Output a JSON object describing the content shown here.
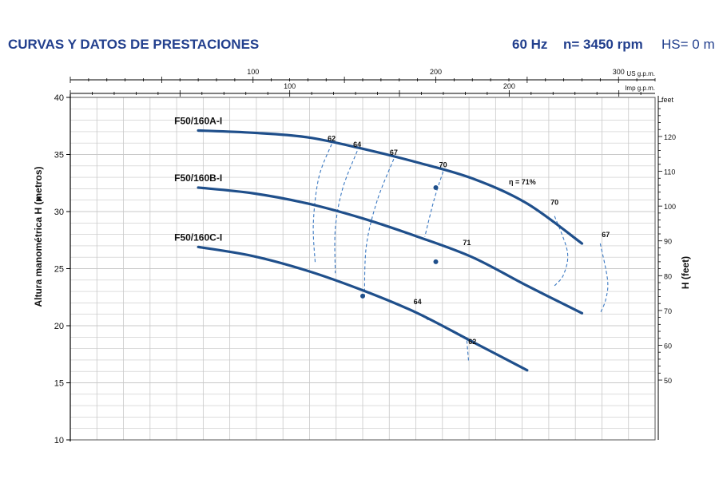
{
  "header": {
    "title": "CURVAS Y DATOS DE PRESTACIONES",
    "frequency": "60 Hz",
    "speed": "n= 3450 rpm",
    "suction": "HS= 0 m"
  },
  "colors": {
    "curve": "#1f4f8b",
    "header_text": "#23408e",
    "grid": "#c8c8c8",
    "axis": "#000000"
  },
  "chart_data": {
    "type": "line",
    "title": "",
    "ylabel": "Altura manométrica H (metros)",
    "ylabel_right": "H (feet)",
    "right_unit": "feet",
    "ylim": [
      10,
      40
    ],
    "yticks": [
      10,
      15,
      20,
      25,
      30,
      35,
      40
    ],
    "feet_ticks": [
      50,
      60,
      70,
      80,
      90,
      100,
      110,
      120
    ],
    "x_us_gpm": {
      "label": "US g.p.m.",
      "range": [
        0,
        320
      ],
      "ticks": [
        100,
        200,
        300
      ]
    },
    "x_imp_gpm": {
      "label": "Imp g.p.m.",
      "range": [
        0,
        266.5
      ],
      "ticks": [
        100,
        200
      ]
    },
    "grid": true,
    "series": [
      {
        "name": "F50/160A-I",
        "points": [
          [
            70,
            37.1
          ],
          [
            100,
            36.9
          ],
          [
            130,
            36.5
          ],
          [
            160,
            35.5
          ],
          [
            190,
            34.3
          ],
          [
            220,
            32.9
          ],
          [
            250,
            30.7
          ],
          [
            280,
            27.2
          ]
        ]
      },
      {
        "name": "F50/160B-I",
        "points": [
          [
            70,
            32.1
          ],
          [
            100,
            31.6
          ],
          [
            130,
            30.7
          ],
          [
            160,
            29.4
          ],
          [
            190,
            27.8
          ],
          [
            220,
            26.0
          ],
          [
            250,
            23.5
          ],
          [
            280,
            21.1
          ]
        ]
      },
      {
        "name": "F50/160C-I",
        "points": [
          [
            70,
            26.9
          ],
          [
            100,
            26.1
          ],
          [
            130,
            24.8
          ],
          [
            160,
            23.1
          ],
          [
            190,
            21.1
          ],
          [
            220,
            18.6
          ],
          [
            250,
            16.1
          ]
        ]
      }
    ],
    "efficiency_labels": [
      {
        "text": "62",
        "x": 143,
        "y": 35.9
      },
      {
        "text": "64",
        "x": 157,
        "y": 35.4
      },
      {
        "text": "67",
        "x": 177,
        "y": 34.7
      },
      {
        "text": "70",
        "x": 204,
        "y": 33.6
      },
      {
        "text": "η = 71%",
        "x": 240,
        "y": 32.1
      },
      {
        "text": "70",
        "x": 265,
        "y": 30.3
      },
      {
        "text": "67",
        "x": 293,
        "y": 27.5
      },
      {
        "text": "71",
        "x": 217,
        "y": 26.8
      },
      {
        "text": "64",
        "x": 190,
        "y": 21.6
      },
      {
        "text": "62",
        "x": 220,
        "y": 18.1
      }
    ],
    "efficiency_points": [
      {
        "x": 200,
        "y": 32.1
      },
      {
        "x": 200,
        "y": 25.6
      },
      {
        "x": 160,
        "y": 22.6
      }
    ],
    "iso_efficiency_curves": [
      {
        "label": "62",
        "points": [
          [
            143,
            35.9
          ],
          [
            136,
            33
          ],
          [
            133,
            29
          ],
          [
            134,
            25.5
          ]
        ]
      },
      {
        "label": "64",
        "points": [
          [
            157,
            35.3
          ],
          [
            149,
            32
          ],
          [
            145,
            28.5
          ],
          [
            145,
            24.6
          ]
        ]
      },
      {
        "label": "67",
        "points": [
          [
            177,
            34.6
          ],
          [
            168,
            31
          ],
          [
            162,
            27
          ],
          [
            161,
            22.6
          ]
        ]
      },
      {
        "label": "70",
        "points": [
          [
            204,
            33.5
          ],
          [
            199,
            31
          ],
          [
            194,
            27.8
          ]
        ]
      },
      {
        "label": "70",
        "points": [
          [
            265,
            29.6
          ],
          [
            272,
            26.5
          ],
          [
            270,
            24.5
          ],
          [
            265,
            23.5
          ]
        ]
      },
      {
        "label": "67",
        "points": [
          [
            290,
            27.2
          ],
          [
            294,
            24
          ],
          [
            293,
            22.3
          ],
          [
            290,
            21.1
          ]
        ]
      },
      {
        "label": "64",
        "points": [
          [
            192,
            20.9
          ],
          [
            196,
            20.5
          ]
        ]
      },
      {
        "label": "62",
        "points": [
          [
            217,
            18.7
          ],
          [
            218,
            16.8
          ]
        ]
      }
    ]
  }
}
